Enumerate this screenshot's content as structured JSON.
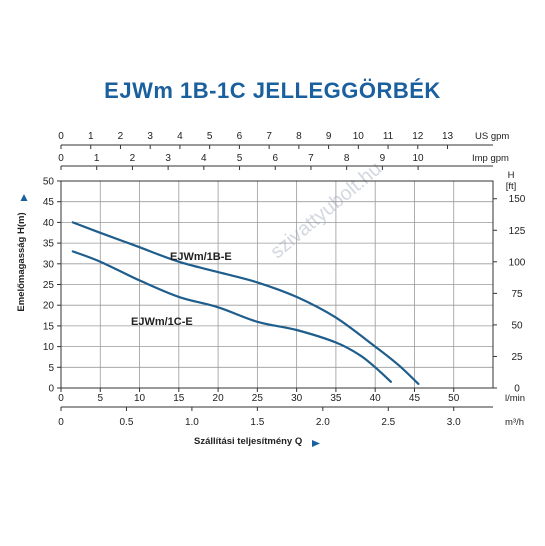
{
  "chart_data": {
    "type": "line",
    "title": "EJWm 1B-1C JELLEGGÖRBÉK",
    "xlabel": "Szállítási teljesítmény Q",
    "ylabel": "Emelőmagasság H(m)",
    "xlim": [
      0,
      55
    ],
    "ylim": [
      0,
      50
    ],
    "grid": true,
    "bottom_axis": {
      "unit": "l/min",
      "ticks": [
        0,
        5,
        10,
        15,
        20,
        25,
        30,
        35,
        40,
        45,
        50
      ]
    },
    "bottom_axis_2": {
      "unit": "m³/h",
      "ticks": [
        "0",
        "0.5",
        "1.0",
        "1.5",
        "2.0",
        "2.5",
        "3.0"
      ],
      "values": [
        0,
        0.5,
        1.0,
        1.5,
        2.0,
        2.5,
        3.0
      ]
    },
    "top_axis_1": {
      "unit": "US gpm",
      "ticks": [
        0,
        1,
        2,
        3,
        4,
        5,
        6,
        7,
        8,
        9,
        10,
        11,
        12,
        13
      ]
    },
    "top_axis_2": {
      "unit": "Imp gpm",
      "ticks": [
        0,
        1,
        2,
        3,
        4,
        5,
        6,
        7,
        8,
        9,
        10
      ]
    },
    "left_axis": {
      "ticks": [
        0,
        5,
        10,
        15,
        20,
        25,
        30,
        35,
        40,
        45,
        50
      ]
    },
    "right_axis": {
      "unit_top": "H",
      "unit": "[ft]",
      "ticks": [
        0,
        25,
        50,
        75,
        100,
        125,
        150
      ]
    },
    "series": [
      {
        "name": "EJWm/1B-E",
        "x": [
          1.5,
          5,
          10,
          15,
          20,
          25,
          30,
          35,
          40,
          43,
          45.5
        ],
        "y": [
          40,
          37.5,
          34,
          30.5,
          28,
          25.5,
          22,
          17,
          10,
          5.5,
          1
        ]
      },
      {
        "name": "EJWm/1C-E",
        "x": [
          1.5,
          5,
          10,
          15,
          20,
          25,
          30,
          35,
          38,
          40,
          42
        ],
        "y": [
          33,
          30.5,
          26,
          22,
          19.5,
          16,
          14,
          11,
          8,
          5,
          1.5
        ]
      }
    ],
    "colors": {
      "curve": "#1f5e8c",
      "title": "#1a5f9e",
      "grid": "#9a9a9a",
      "arrow": "#1a5f9e"
    }
  },
  "watermark": "szivattyubolt.hu"
}
